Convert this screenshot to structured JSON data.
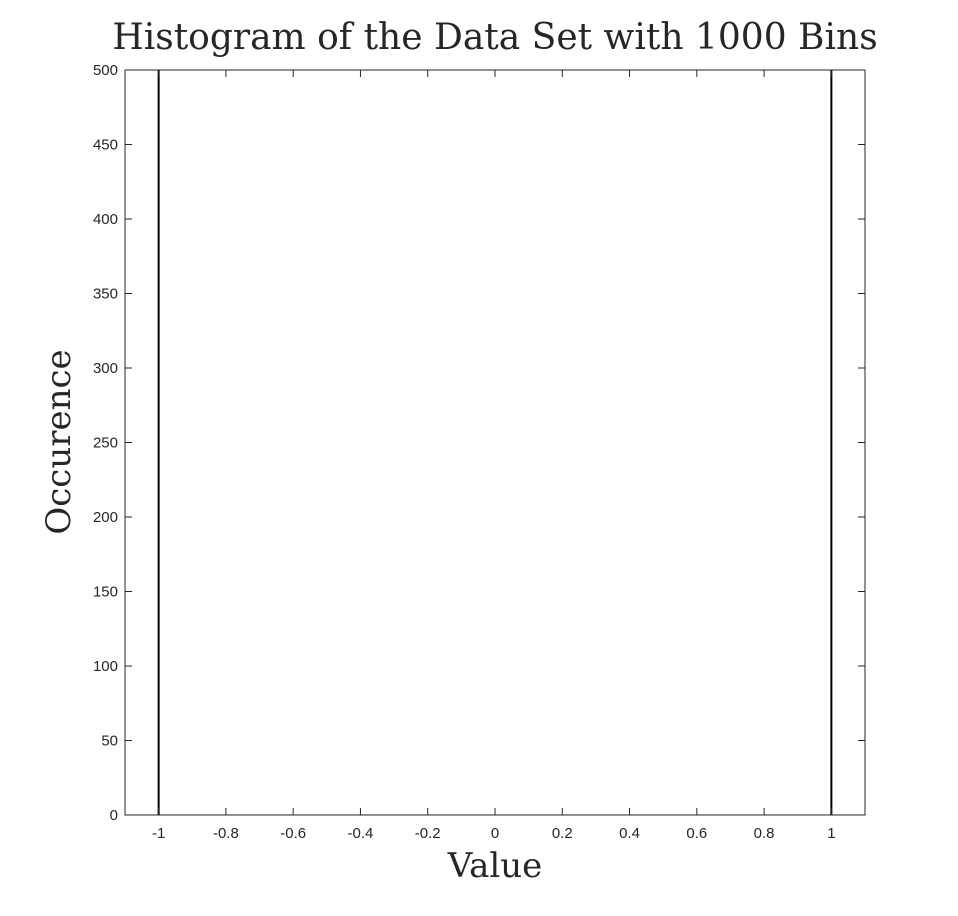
{
  "chart_data": {
    "type": "bar",
    "title": "Histogram of the Data Set with 1000 Bins",
    "xlabel": "Value",
    "ylabel": "Occurence",
    "xlim": [
      -1.1,
      1.1
    ],
    "ylim": [
      0,
      500
    ],
    "xticks": [
      -1,
      -0.8,
      -0.6,
      -0.4,
      -0.2,
      0,
      0.2,
      0.4,
      0.6,
      0.8,
      1
    ],
    "xtick_labels": [
      "-1",
      "-0.8",
      "-0.6",
      "-0.4",
      "-0.2",
      "0",
      "0.2",
      "0.4",
      "0.6",
      "0.8",
      "1"
    ],
    "yticks": [
      0,
      50,
      100,
      150,
      200,
      250,
      300,
      350,
      400,
      450,
      500
    ],
    "ytick_labels": [
      "0",
      "50",
      "100",
      "150",
      "200",
      "250",
      "300",
      "350",
      "400",
      "450",
      "500"
    ],
    "bins": [
      {
        "x": -1,
        "value": 500
      },
      {
        "x": 1,
        "value": 500
      }
    ],
    "grid": false,
    "box": true,
    "colors": {
      "bars": "#000000",
      "axes": "#262626",
      "background": "#ffffff"
    }
  }
}
